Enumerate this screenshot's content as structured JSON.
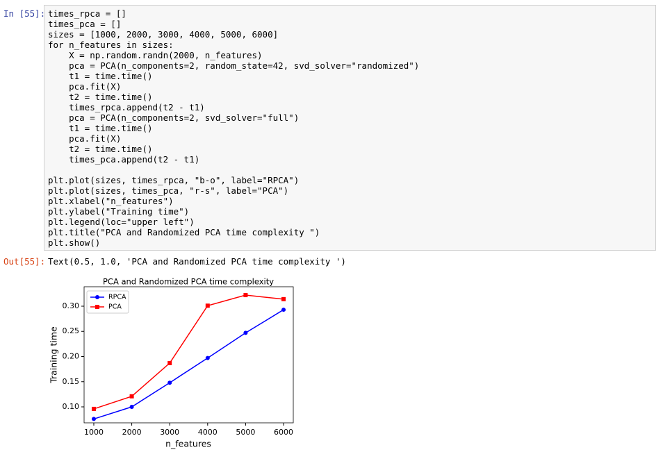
{
  "input_prompt": "In [55]:",
  "code_blocks": [
    [
      "times_rpca = []",
      "times_pca = []",
      "sizes = [1000, 2000, 3000, 4000, 5000, 6000]",
      "for n_features in sizes:",
      "    X = np.random.randn(2000, n_features)",
      "    pca = PCA(n_components=2, random_state=42, svd_solver=\"randomized\")",
      "    t1 = time.time()",
      "    pca.fit(X)",
      "    t2 = time.time()",
      "    times_rpca.append(t2 - t1)",
      "    pca = PCA(n_components=2, svd_solver=\"full\")",
      "    t1 = time.time()",
      "    pca.fit(X)",
      "    t2 = time.time()",
      "    times_pca.append(t2 - t1)"
    ],
    [
      "plt.plot(sizes, times_rpca, \"b-o\", label=\"RPCA\")",
      "plt.plot(sizes, times_pca, \"r-s\", label=\"PCA\")",
      "plt.xlabel(\"n_features\")",
      "plt.ylabel(\"Training time\")",
      "plt.legend(loc=\"upper left\")",
      "plt.title(\"PCA and Randomized PCA time complexity \")",
      "plt.show()"
    ]
  ],
  "output_prompt": "Out[55]:",
  "output_text": "Text(0.5, 1.0, 'PCA and Randomized PCA time complexity ')",
  "chart_data": {
    "type": "line",
    "title": "PCA and Randomized PCA time complexity",
    "x_label": "n_features",
    "y_label": "Training time",
    "x": [
      1000,
      2000,
      3000,
      4000,
      5000,
      6000
    ],
    "series": [
      {
        "name": "RPCA",
        "color": "#0000ff",
        "marker": "o",
        "values": [
          0.076,
          0.1,
          0.148,
          0.197,
          0.247,
          0.293
        ]
      },
      {
        "name": "PCA",
        "color": "#ff0000",
        "marker": "s",
        "values": [
          0.096,
          0.121,
          0.187,
          0.301,
          0.322,
          0.314
        ]
      }
    ],
    "xlim": [
      744,
      6256
    ],
    "ylim": [
      0.0683,
      0.3386
    ],
    "xticks": [
      1000,
      2000,
      3000,
      4000,
      5000,
      6000
    ],
    "yticks": [
      {
        "value": 0.1,
        "label": "0.10"
      },
      {
        "value": 0.15,
        "label": "0.15"
      },
      {
        "value": 0.2,
        "label": "0.20"
      },
      {
        "value": 0.25,
        "label": "0.25"
      },
      {
        "value": 0.3,
        "label": "0.30"
      }
    ],
    "legend": "upper left"
  }
}
